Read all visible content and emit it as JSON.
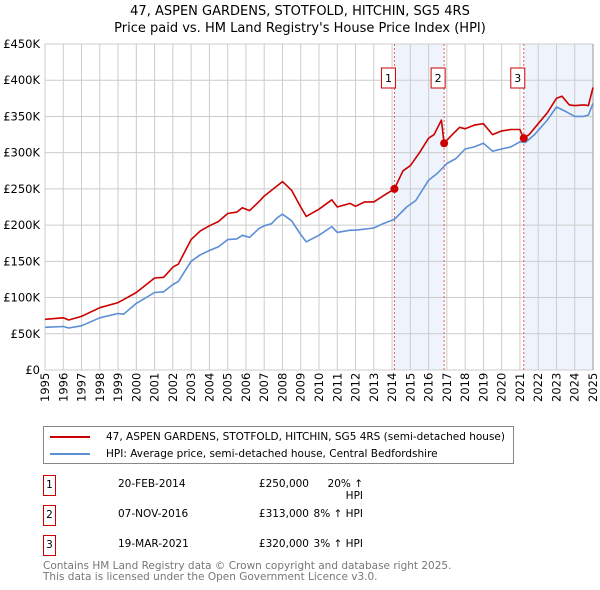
{
  "chart_data": {
    "type": "line",
    "title": "47, ASPEN GARDENS, STOTFOLD, HITCHIN, SG5 4RS",
    "subtitle": "Price paid vs. HM Land Registry's House Price Index (HPI)",
    "xlim": [
      1995,
      2025
    ],
    "ylim": [
      0,
      450000
    ],
    "x_ticks": [
      "1995",
      "1996",
      "1997",
      "1998",
      "1999",
      "2000",
      "2001",
      "2002",
      "2003",
      "2004",
      "2005",
      "2006",
      "2007",
      "2008",
      "2009",
      "2010",
      "2011",
      "2012",
      "2013",
      "2014",
      "2015",
      "2016",
      "2017",
      "2018",
      "2019",
      "2020",
      "2021",
      "2022",
      "2023",
      "2024",
      "2025"
    ],
    "y_ticks": [
      {
        "v": 0,
        "label": "£0"
      },
      {
        "v": 50000,
        "label": "£50K"
      },
      {
        "v": 100000,
        "label": "£100K"
      },
      {
        "v": 150000,
        "label": "£150K"
      },
      {
        "v": 200000,
        "label": "£200K"
      },
      {
        "v": 250000,
        "label": "£250K"
      },
      {
        "v": 300000,
        "label": "£300K"
      },
      {
        "v": 350000,
        "label": "£350K"
      },
      {
        "v": 400000,
        "label": "£400K"
      },
      {
        "v": 450000,
        "label": "£450K"
      }
    ],
    "grid": true,
    "series": [
      {
        "name": "47, ASPEN GARDENS, STOTFOLD, HITCHIN, SG5 4RS (semi-detached house)",
        "color": "#cc0000",
        "x": [
          1995,
          1996,
          1996.3,
          1997,
          1998,
          1999,
          2000,
          2001,
          2001.5,
          2002,
          2002.3,
          2003,
          2003.5,
          2004,
          2004.5,
          2005,
          2005.5,
          2005.8,
          2006.2,
          2006.7,
          2007,
          2007.5,
          2008,
          2008.5,
          2009,
          2009.3,
          2010,
          2010.7,
          2011,
          2011.7,
          2012,
          2012.5,
          2013,
          2013.5,
          2014.13,
          2014.6,
          2015,
          2015.5,
          2016,
          2016.3,
          2016.7,
          2016.85,
          2017.3,
          2017.7,
          2018,
          2018.5,
          2019,
          2019.5,
          2020,
          2020.5,
          2021,
          2021.2,
          2021.5,
          2022,
          2022.5,
          2023,
          2023.3,
          2023.7,
          2024,
          2024.5,
          2024.75,
          2025
        ],
        "values": [
          70000,
          72000,
          69000,
          74000,
          86000,
          93000,
          107000,
          127000,
          128000,
          142000,
          146000,
          180000,
          192000,
          199000,
          205000,
          216000,
          218000,
          224000,
          220000,
          232000,
          240000,
          250000,
          260000,
          248000,
          225000,
          212000,
          222000,
          235000,
          225000,
          230000,
          226000,
          232000,
          232000,
          240000,
          250000,
          275000,
          282000,
          300000,
          320000,
          325000,
          345000,
          313000,
          325000,
          335000,
          333000,
          338000,
          340000,
          325000,
          330000,
          332000,
          332000,
          320000,
          325000,
          340000,
          355000,
          375000,
          378000,
          366000,
          365000,
          366000,
          365000,
          390000
        ]
      },
      {
        "name": "HPI: Average price, semi-detached house, Central Bedfordshire",
        "color": "#5b8fd4",
        "x": [
          1995,
          1996,
          1996.3,
          1997,
          1998,
          1999,
          1999.3,
          2000,
          2001,
          2001.5,
          2002,
          2002.3,
          2003,
          2003.5,
          2004,
          2004.5,
          2005,
          2005.5,
          2005.8,
          2006.2,
          2006.7,
          2007,
          2007.4,
          2007.7,
          2008,
          2008.5,
          2009,
          2009.3,
          2010,
          2010.7,
          2011,
          2011.7,
          2012,
          2013,
          2013.5,
          2014.13,
          2014.8,
          2015.3,
          2016,
          2016.5,
          2017,
          2017.5,
          2018,
          2018.5,
          2019,
          2019.5,
          2020,
          2020.5,
          2021,
          2021.3,
          2021.8,
          2022.5,
          2023,
          2023.5,
          2024,
          2024.5,
          2024.75,
          2025
        ],
        "values": [
          59000,
          60000,
          58000,
          61000,
          72000,
          78000,
          77000,
          92000,
          107000,
          108000,
          118000,
          122000,
          150000,
          159000,
          165000,
          170000,
          180000,
          181000,
          186000,
          183000,
          195000,
          199000,
          202000,
          210000,
          215000,
          206000,
          187000,
          177000,
          186000,
          198000,
          190000,
          193000,
          193000,
          196000,
          202000,
          208000,
          225000,
          234000,
          262000,
          272000,
          285000,
          292000,
          305000,
          308000,
          313000,
          302000,
          305000,
          308000,
          315000,
          314000,
          325000,
          345000,
          363000,
          357000,
          350000,
          350000,
          352000,
          368000
        ]
      }
    ],
    "sales": [
      {
        "n": "1",
        "x": 2014.13,
        "value": 250000
      },
      {
        "n": "2",
        "x": 2016.85,
        "value": 313000
      },
      {
        "n": "3",
        "x": 2021.21,
        "value": 320000
      }
    ],
    "shaded": [
      [
        2014.13,
        2016.85
      ],
      [
        2021.21,
        2025
      ]
    ]
  },
  "legend": {
    "property": "47, ASPEN GARDENS, STOTFOLD, HITCHIN, SG5 4RS (semi-detached house)",
    "hpi": "HPI: Average price, semi-detached house, Central Bedfordshire"
  },
  "transactions": [
    {
      "n": "1",
      "date": "20-FEB-2014",
      "price": "£250,000",
      "hpi": "20% ↑ HPI"
    },
    {
      "n": "2",
      "date": "07-NOV-2016",
      "price": "£313,000",
      "hpi": "8% ↑ HPI"
    },
    {
      "n": "3",
      "date": "19-MAR-2021",
      "price": "£320,000",
      "hpi": "3% ↑ HPI"
    }
  ],
  "footer": {
    "line1": "Contains HM Land Registry data © Crown copyright and database right 2025.",
    "line2": "This data is licensed under the Open Government Licence v3.0."
  }
}
